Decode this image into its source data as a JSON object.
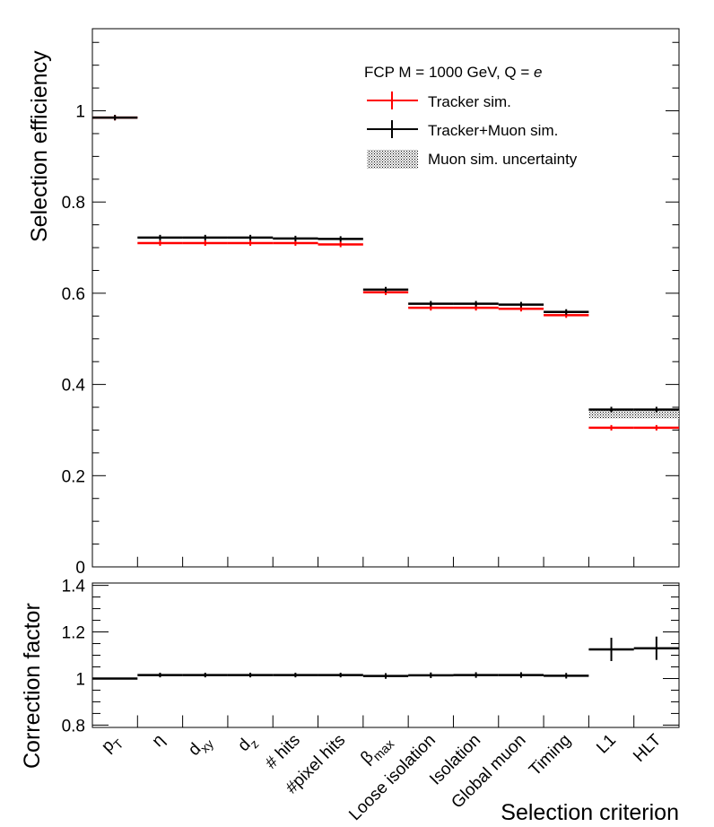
{
  "chart_data": [
    {
      "type": "bar",
      "panel": "main",
      "ylabel": "Selection efficiency",
      "ylim": [
        0,
        1.18
      ],
      "yticks": [
        "0",
        "0.2",
        "0.4",
        "0.6",
        "0.8",
        "1"
      ],
      "categories": [
        "pT",
        "eta",
        "dxy",
        "dz",
        "# hits",
        "#pixel hits",
        "beta_max",
        "Loose isolation",
        "Isolation",
        "Global muon",
        "Timing",
        "L1",
        "HLT"
      ],
      "legend": {
        "position": "top-right",
        "header": "FCP M = 1000 GeV, Q = ",
        "header_italic": "e",
        "entries": [
          "Tracker sim.",
          "Tracker+Muon sim.",
          "Muon sim. uncertainty"
        ]
      },
      "series": [
        {
          "name": "Tracker sim.",
          "color": "#ff0000",
          "values": [
            0.985,
            0.71,
            0.71,
            0.71,
            0.71,
            0.707,
            0.602,
            0.568,
            0.568,
            0.566,
            0.552,
            0.305,
            0.305
          ],
          "error": 0.006
        },
        {
          "name": "Tracker+Muon sim.",
          "color": "#000000",
          "values": [
            0.985,
            0.722,
            0.722,
            0.722,
            0.72,
            0.719,
            0.608,
            0.577,
            0.577,
            0.575,
            0.559,
            0.345,
            0.345
          ],
          "error": 0.006
        },
        {
          "name": "Muon sim. uncertainty",
          "color": "#000000",
          "band_low": [
            null,
            null,
            null,
            null,
            null,
            null,
            null,
            null,
            null,
            null,
            null,
            0.325,
            0.325
          ],
          "band_high": [
            null,
            null,
            null,
            null,
            null,
            null,
            null,
            null,
            null,
            null,
            null,
            0.345,
            0.345
          ]
        }
      ]
    },
    {
      "type": "line",
      "panel": "ratio",
      "xlabel": "Selection criterion",
      "ylabel": "Correction factor",
      "ylim": [
        0.79,
        1.41
      ],
      "yticks": [
        "0.8",
        "1",
        "1.2",
        "1.4"
      ],
      "xtick_labels": [
        {
          "main": "p",
          "sub": "T"
        },
        {
          "main": "η",
          "sub": ""
        },
        {
          "main": "d",
          "sub": "xy"
        },
        {
          "main": "d",
          "sub": "z"
        },
        {
          "main": "# hits",
          "sub": ""
        },
        {
          "main": "#pixel hits",
          "sub": ""
        },
        {
          "main": "β",
          "sub": "max"
        },
        {
          "main": "Loose isolation",
          "sub": ""
        },
        {
          "main": "Isolation",
          "sub": ""
        },
        {
          "main": "Global muon",
          "sub": ""
        },
        {
          "main": "Timing",
          "sub": ""
        },
        {
          "main": "L1",
          "sub": ""
        },
        {
          "main": "HLT",
          "sub": ""
        }
      ],
      "series": [
        {
          "name": "Correction factor",
          "color": "#000000",
          "values": [
            1.0,
            1.015,
            1.015,
            1.015,
            1.015,
            1.015,
            1.011,
            1.014,
            1.015,
            1.015,
            1.012,
            1.125,
            1.13
          ],
          "errors": [
            0.003,
            0.01,
            0.01,
            0.01,
            0.01,
            0.01,
            0.012,
            0.012,
            0.012,
            0.012,
            0.012,
            0.05,
            0.05
          ]
        }
      ]
    }
  ]
}
